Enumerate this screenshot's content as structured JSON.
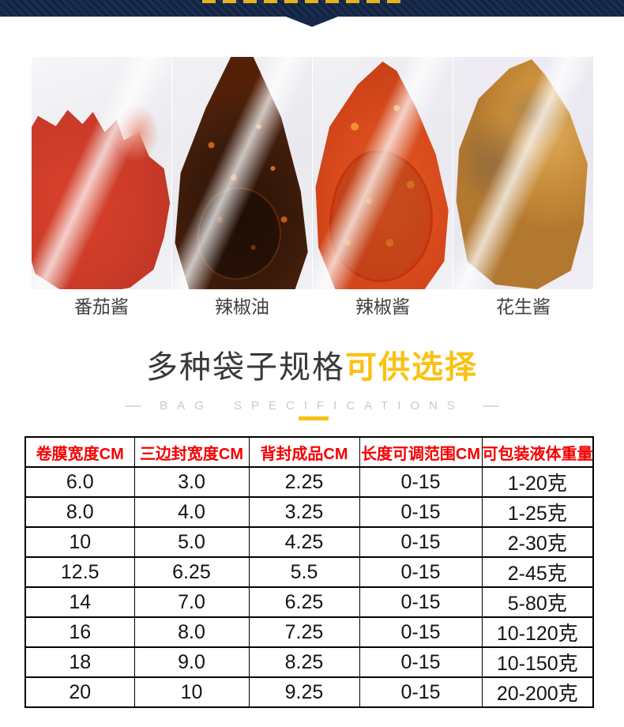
{
  "colors": {
    "banner_navy": "#16243f",
    "accent_yellow": "#fbc112",
    "table_header_red": "#f40000"
  },
  "products": [
    {
      "label": "番茄酱"
    },
    {
      "label": "辣椒油"
    },
    {
      "label": "辣椒酱"
    },
    {
      "label": "花生酱"
    }
  ],
  "section": {
    "title_main": "多种袋子规格",
    "title_accent": "可供选择",
    "subtitle": "BAG SPECIFICATIONS"
  },
  "spec_table": {
    "headers": [
      "卷膜宽度CM",
      "三边封宽度CM",
      "背封成品CM",
      "长度可调范围CM",
      "可包装液体重量"
    ],
    "rows": [
      [
        "6.0",
        "3.0",
        "2.25",
        "0-15",
        "1-20克"
      ],
      [
        "8.0",
        "4.0",
        "3.25",
        "0-15",
        "1-25克"
      ],
      [
        "10",
        "5.0",
        "4.25",
        "0-15",
        "2-30克"
      ],
      [
        "12.5",
        "6.25",
        "5.5",
        "0-15",
        "2-45克"
      ],
      [
        "14",
        "7.0",
        "6.25",
        "0-15",
        "5-80克"
      ],
      [
        "16",
        "8.0",
        "7.25",
        "0-15",
        "10-120克"
      ],
      [
        "18",
        "9.0",
        "8.25",
        "0-15",
        "10-150克"
      ],
      [
        "20",
        "10",
        "9.25",
        "0-15",
        "20-200克"
      ]
    ]
  }
}
